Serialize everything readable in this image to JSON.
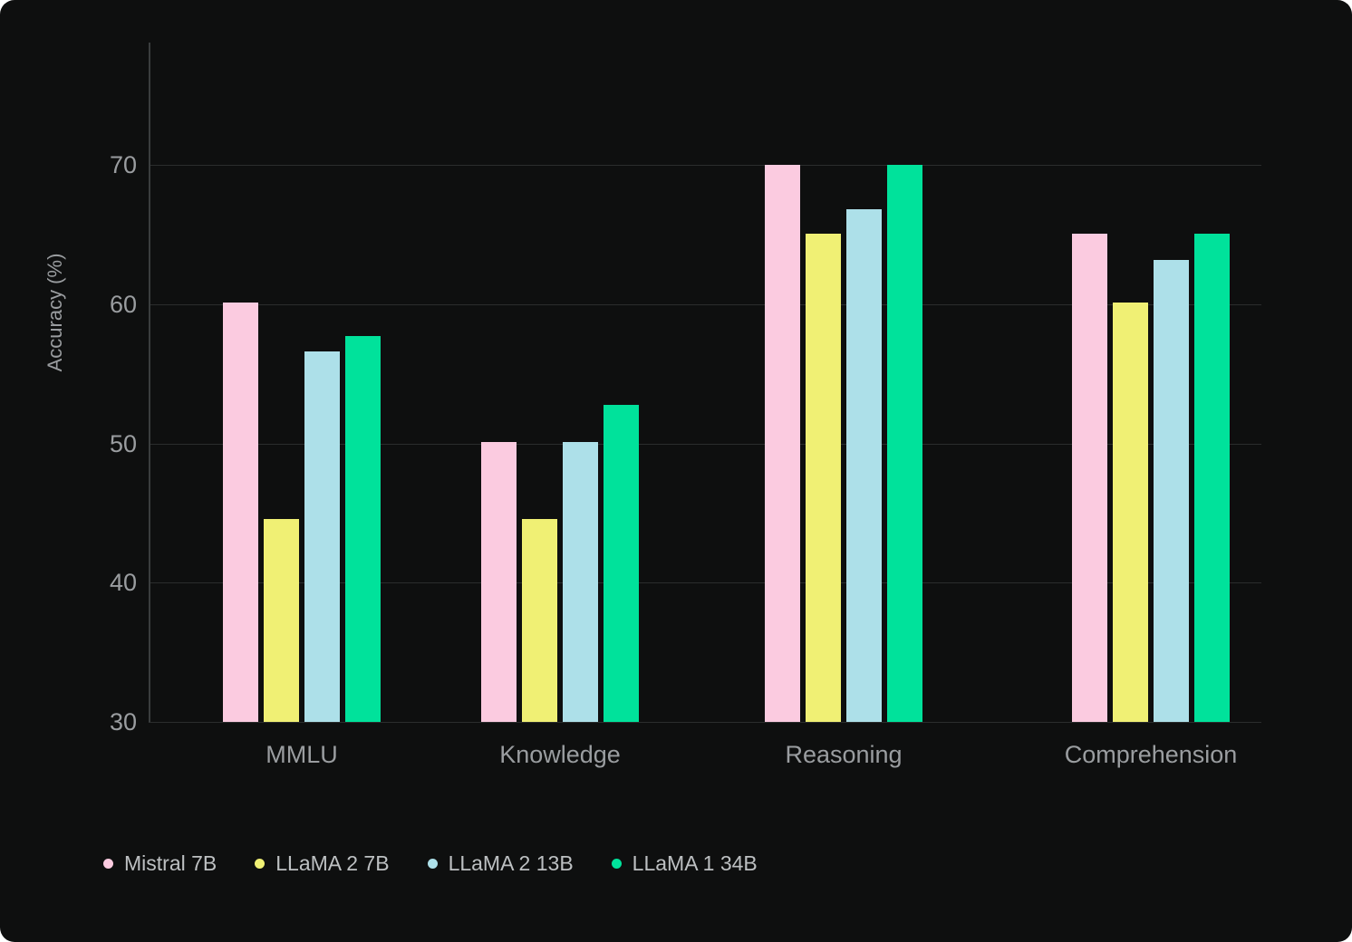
{
  "theme": {
    "bg": "#0e0f0f",
    "text_muted": "#9a9da0",
    "text_legend": "#bdc0c2",
    "grid": "#2b2d2d",
    "axis": "#3a3d3e"
  },
  "chart_data": {
    "type": "bar",
    "categories": [
      "MMLU",
      "Knowledge",
      "Reasoning",
      "Comprehension"
    ],
    "series": [
      {
        "name": "Mistral 7B",
        "color": "#FBCBE0",
        "values": [
          60.1,
          50.1,
          70.0,
          65.1
        ]
      },
      {
        "name": "LLaMA 2 7B",
        "color": "#F0F074",
        "values": [
          44.6,
          44.6,
          65.1,
          60.1
        ]
      },
      {
        "name": "LLaMA 2 13B",
        "color": "#ADE0E9",
        "values": [
          56.6,
          50.1,
          66.8,
          63.2
        ]
      },
      {
        "name": "LLaMA 1 34B",
        "color": "#00E29B",
        "values": [
          57.7,
          52.8,
          70.0,
          65.1
        ]
      }
    ],
    "xlabel": "",
    "ylabel": "Accuracy (%)",
    "yticks": [
      30,
      40,
      50,
      60,
      70
    ],
    "ylim": [
      30,
      78.8
    ],
    "grid": true,
    "legend_position": "bottom-left"
  }
}
